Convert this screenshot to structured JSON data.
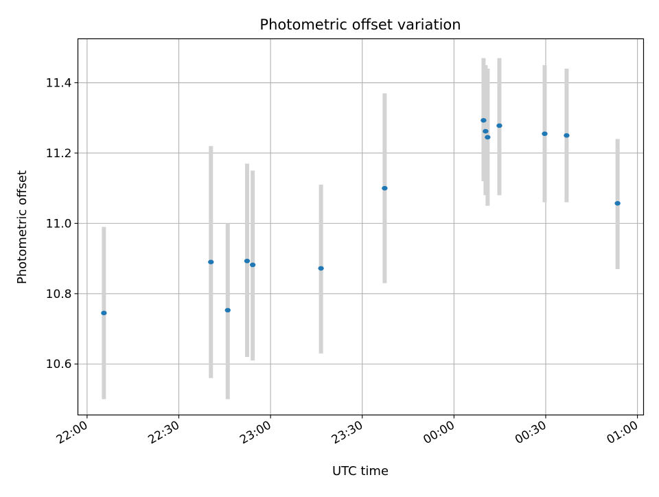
{
  "chart_data": {
    "type": "scatter",
    "title": "Photometric offset variation",
    "xlabel": "UTC time",
    "ylabel": "Photometric offset",
    "x_axis": {
      "kind": "time",
      "range": [
        "21:57",
        "01:02"
      ],
      "ticks": [
        "22:00",
        "22:30",
        "23:00",
        "23:30",
        "00:00",
        "00:30",
        "01:00"
      ]
    },
    "y_axis": {
      "range": [
        10.455,
        11.525
      ],
      "ticks": [
        10.6,
        10.8,
        11.0,
        11.2,
        11.4
      ],
      "tick_labels": [
        "10.6",
        "10.8",
        "11.0",
        "11.2",
        "11.4"
      ]
    },
    "grid": true,
    "points": [
      {
        "x": "22:05:30",
        "y": 10.745,
        "ylow": 10.5,
        "yhigh": 10.99
      },
      {
        "x": "22:40:30",
        "y": 10.89,
        "ylow": 10.56,
        "yhigh": 11.22
      },
      {
        "x": "22:46:00",
        "y": 10.753,
        "ylow": 10.5,
        "yhigh": 11.0
      },
      {
        "x": "22:52:20",
        "y": 10.893,
        "ylow": 10.62,
        "yhigh": 11.17
      },
      {
        "x": "22:54:10",
        "y": 10.882,
        "ylow": 10.61,
        "yhigh": 11.15
      },
      {
        "x": "23:16:30",
        "y": 10.872,
        "ylow": 10.63,
        "yhigh": 11.11
      },
      {
        "x": "23:37:20",
        "y": 11.1,
        "ylow": 10.83,
        "yhigh": 11.37
      },
      {
        "x": "00:09:40",
        "y": 11.293,
        "ylow": 11.12,
        "yhigh": 11.47
      },
      {
        "x": "00:10:20",
        "y": 11.262,
        "ylow": 11.08,
        "yhigh": 11.45
      },
      {
        "x": "00:11:00",
        "y": 11.245,
        "ylow": 11.05,
        "yhigh": 11.44
      },
      {
        "x": "00:14:50",
        "y": 11.278,
        "ylow": 11.08,
        "yhigh": 11.47
      },
      {
        "x": "00:29:40",
        "y": 11.255,
        "ylow": 11.06,
        "yhigh": 11.45
      },
      {
        "x": "00:36:50",
        "y": 11.25,
        "ylow": 11.06,
        "yhigh": 11.44
      },
      {
        "x": "00:53:30",
        "y": 11.057,
        "ylow": 10.87,
        "yhigh": 11.24
      }
    ],
    "marker_color": "#1f77b4",
    "errorbar_color": "#d3d3d3",
    "grid_color": "#b0b0b0"
  }
}
